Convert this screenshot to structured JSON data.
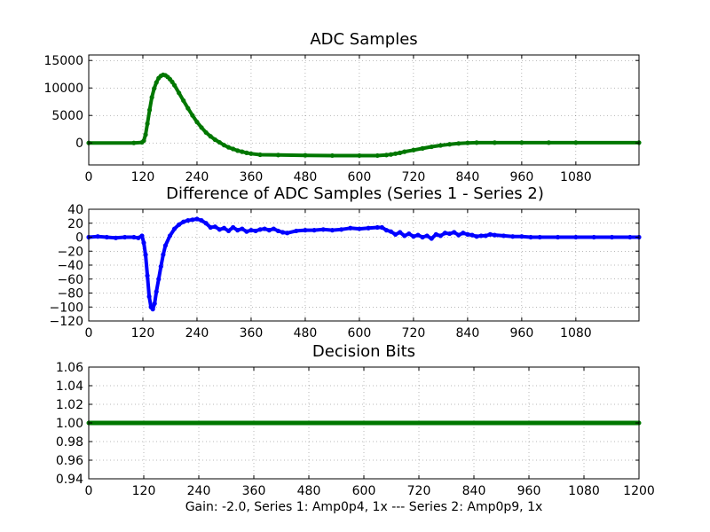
{
  "figure": {
    "xlabel": "Gain: -2.0, Series 1: Amp0p4, 1x --- Series 2: Amp0p9, 1x"
  },
  "chart_data": [
    {
      "type": "line",
      "title": "ADC Samples",
      "xlabel": "",
      "ylabel": "",
      "xlim": [
        0,
        1220
      ],
      "ylim": [
        -4000,
        16000
      ],
      "xticks": [
        0,
        120,
        240,
        360,
        480,
        600,
        720,
        840,
        960,
        1080
      ],
      "xtick_labels": [
        "0",
        "120",
        "240",
        "360",
        "480",
        "600",
        "720",
        "840",
        "960",
        "1080"
      ],
      "yticks": [
        0,
        5000,
        10000,
        15000
      ],
      "ytick_labels": [
        "0",
        "5000",
        "10000",
        "15000"
      ],
      "grid": true,
      "series": [
        {
          "color": "#007700",
          "marker": "dot",
          "x": [
            0,
            100,
            118,
            122,
            126,
            130,
            135,
            140,
            145,
            150,
            155,
            160,
            165,
            170,
            175,
            180,
            185,
            190,
            200,
            210,
            220,
            230,
            240,
            250,
            260,
            270,
            280,
            290,
            300,
            310,
            320,
            330,
            340,
            350,
            360,
            380,
            420,
            480,
            540,
            600,
            640,
            660,
            670,
            680,
            690,
            700,
            720,
            740,
            760,
            780,
            800,
            820,
            840,
            860,
            900,
            960,
            1020,
            1080,
            1220
          ],
          "y": [
            0,
            0,
            100,
            400,
            1500,
            3500,
            6000,
            8300,
            9900,
            11000,
            11800,
            12200,
            12400,
            12300,
            12000,
            11600,
            11100,
            10500,
            9100,
            7700,
            6300,
            5000,
            3800,
            2800,
            1900,
            1200,
            600,
            100,
            -400,
            -800,
            -1100,
            -1400,
            -1600,
            -1800,
            -1950,
            -2150,
            -2200,
            -2250,
            -2300,
            -2300,
            -2300,
            -2200,
            -2100,
            -1950,
            -1800,
            -1600,
            -1300,
            -1000,
            -700,
            -450,
            -250,
            -100,
            0,
            50,
            50,
            50,
            50,
            50,
            50
          ]
        }
      ]
    },
    {
      "type": "line",
      "title": "Difference of ADC Samples (Series 1 - Series 2)",
      "xlabel": "",
      "ylabel": "",
      "xlim": [
        0,
        1220
      ],
      "ylim": [
        -120,
        40
      ],
      "xticks": [
        0,
        120,
        240,
        360,
        480,
        600,
        720,
        840,
        960,
        1080
      ],
      "xtick_labels": [
        "0",
        "120",
        "240",
        "360",
        "480",
        "600",
        "720",
        "840",
        "960",
        "1080"
      ],
      "yticks": [
        -120,
        -100,
        -80,
        -60,
        -40,
        -20,
        0,
        20,
        40
      ],
      "ytick_labels": [
        "−120",
        "−100",
        "−80",
        "−60",
        "−40",
        "−20",
        "0",
        "20",
        "40"
      ],
      "grid": true,
      "series": [
        {
          "color": "#0000ff",
          "marker": "dot",
          "x": [
            0,
            20,
            40,
            60,
            80,
            100,
            110,
            118,
            122,
            126,
            130,
            134,
            138,
            142,
            146,
            150,
            155,
            160,
            165,
            170,
            180,
            190,
            200,
            210,
            220,
            230,
            240,
            250,
            260,
            270,
            280,
            290,
            300,
            310,
            320,
            330,
            340,
            350,
            360,
            370,
            380,
            390,
            400,
            410,
            420,
            430,
            440,
            460,
            480,
            500,
            520,
            540,
            560,
            580,
            600,
            620,
            640,
            650,
            660,
            670,
            680,
            690,
            700,
            710,
            720,
            730,
            740,
            750,
            760,
            770,
            780,
            790,
            800,
            810,
            820,
            830,
            840,
            850,
            860,
            870,
            880,
            890,
            900,
            920,
            940,
            960,
            980,
            1000,
            1040,
            1080,
            1120,
            1160,
            1200,
            1220
          ],
          "y": [
            0,
            1,
            0,
            -1,
            0,
            0,
            -1,
            2,
            -8,
            -25,
            -55,
            -85,
            -100,
            -103,
            -95,
            -78,
            -60,
            -42,
            -25,
            -12,
            2,
            12,
            18,
            22,
            24,
            25,
            26,
            24,
            20,
            14,
            15,
            11,
            13,
            9,
            14,
            10,
            12,
            8,
            10,
            9,
            11,
            12,
            10,
            12,
            9,
            7,
            6,
            9,
            10,
            10,
            11,
            10,
            11,
            13,
            12,
            13,
            14,
            14,
            10,
            8,
            4,
            7,
            2,
            5,
            1,
            3,
            0,
            2,
            -2,
            4,
            2,
            6,
            5,
            7,
            3,
            6,
            4,
            3,
            1,
            2,
            2,
            4,
            3,
            2,
            1,
            1,
            0,
            0,
            0,
            0,
            0,
            0,
            0,
            0
          ]
        }
      ]
    },
    {
      "type": "line",
      "title": "Decision Bits",
      "xlabel": "Gain: -2.0, Series 1: Amp0p4, 1x --- Series 2: Amp0p9, 1x",
      "ylabel": "",
      "xlim": [
        0,
        1200
      ],
      "ylim": [
        0.94,
        1.06
      ],
      "xticks": [
        0,
        120,
        240,
        360,
        480,
        600,
        720,
        840,
        960,
        1080,
        1200
      ],
      "xtick_labels": [
        "0",
        "120",
        "240",
        "360",
        "480",
        "600",
        "720",
        "840",
        "960",
        "1080",
        "1200"
      ],
      "yticks": [
        0.94,
        0.96,
        0.98,
        1.0,
        1.02,
        1.04,
        1.06
      ],
      "ytick_labels": [
        "0.94",
        "0.96",
        "0.98",
        "1.00",
        "1.02",
        "1.04",
        "1.06"
      ],
      "grid": true,
      "series": [
        {
          "color": "#007700",
          "marker": "dot",
          "x": [
            0,
            1200
          ],
          "y": [
            1.0,
            1.0
          ]
        }
      ]
    }
  ]
}
